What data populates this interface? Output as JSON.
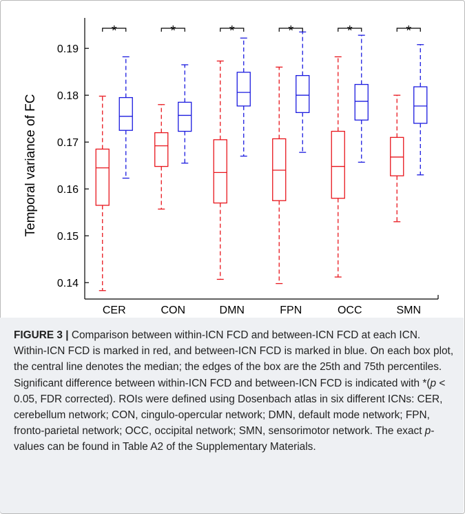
{
  "colors": {
    "within": "#e8141b",
    "between": "#1a1adf",
    "axis": "#000000"
  },
  "chart_data": {
    "type": "box",
    "ylabel": "Temporal variance of FC",
    "ylim": [
      0.1365,
      0.1965
    ],
    "yticks": [
      0.14,
      0.15,
      0.16,
      0.17,
      0.18,
      0.19
    ],
    "ytick_labels": [
      "0.14",
      "0.15",
      "0.16",
      "0.17",
      "0.18",
      "0.19"
    ],
    "categories": [
      "CER",
      "CON",
      "DMN",
      "FPN",
      "OCC",
      "SMN"
    ],
    "significance_marker": "*",
    "series": [
      {
        "group": "within-ICN",
        "color": "#e8141b",
        "boxes": [
          {
            "min": 0.1383,
            "q1": 0.1565,
            "median": 0.1645,
            "q3": 0.1685,
            "max": 0.1798
          },
          {
            "min": 0.1557,
            "q1": 0.1648,
            "median": 0.1692,
            "q3": 0.172,
            "max": 0.178
          },
          {
            "min": 0.1407,
            "q1": 0.157,
            "median": 0.1635,
            "q3": 0.1705,
            "max": 0.1873
          },
          {
            "min": 0.1398,
            "q1": 0.1575,
            "median": 0.164,
            "q3": 0.1707,
            "max": 0.186
          },
          {
            "min": 0.1412,
            "q1": 0.158,
            "median": 0.1648,
            "q3": 0.1723,
            "max": 0.1882
          },
          {
            "min": 0.153,
            "q1": 0.1628,
            "median": 0.1668,
            "q3": 0.171,
            "max": 0.18
          }
        ]
      },
      {
        "group": "between-ICN",
        "color": "#1a1adf",
        "boxes": [
          {
            "min": 0.1623,
            "q1": 0.1725,
            "median": 0.1755,
            "q3": 0.1795,
            "max": 0.1882
          },
          {
            "min": 0.1655,
            "q1": 0.1723,
            "median": 0.1757,
            "q3": 0.1785,
            "max": 0.1865
          },
          {
            "min": 0.167,
            "q1": 0.1777,
            "median": 0.1806,
            "q3": 0.1849,
            "max": 0.1922
          },
          {
            "min": 0.1678,
            "q1": 0.1763,
            "median": 0.18,
            "q3": 0.1842,
            "max": 0.1935
          },
          {
            "min": 0.1657,
            "q1": 0.1747,
            "median": 0.1787,
            "q3": 0.1823,
            "max": 0.1928
          },
          {
            "min": 0.163,
            "q1": 0.174,
            "median": 0.1777,
            "q3": 0.1818,
            "max": 0.1908
          }
        ]
      }
    ]
  },
  "caption": {
    "label": "FIGURE 3 |",
    "p1": " Comparison between within-ICN FCD and between-ICN FCD at each ICN. Within-ICN FCD is marked in red, and between-ICN FCD is marked in blue. On each box plot, the central line denotes the median; the edges of the box are the 25th and 75th percentiles. Significant difference between within-ICN FCD and between-ICN FCD is indicated with *(",
    "p_symbol": "p",
    "p2": " < 0.05, FDR corrected). ROIs were defined using Dosenbach atlas in six different ICNs: CER, cerebellum network; CON, cingulo-opercular network; DMN, default mode network; FPN, fronto-parietal network; OCC, occipital network; SMN, sensorimotor network. The exact ",
    "p_symbol2": "p",
    "p3": "-values can be found in Table A2 of the Supplementary Materials."
  }
}
